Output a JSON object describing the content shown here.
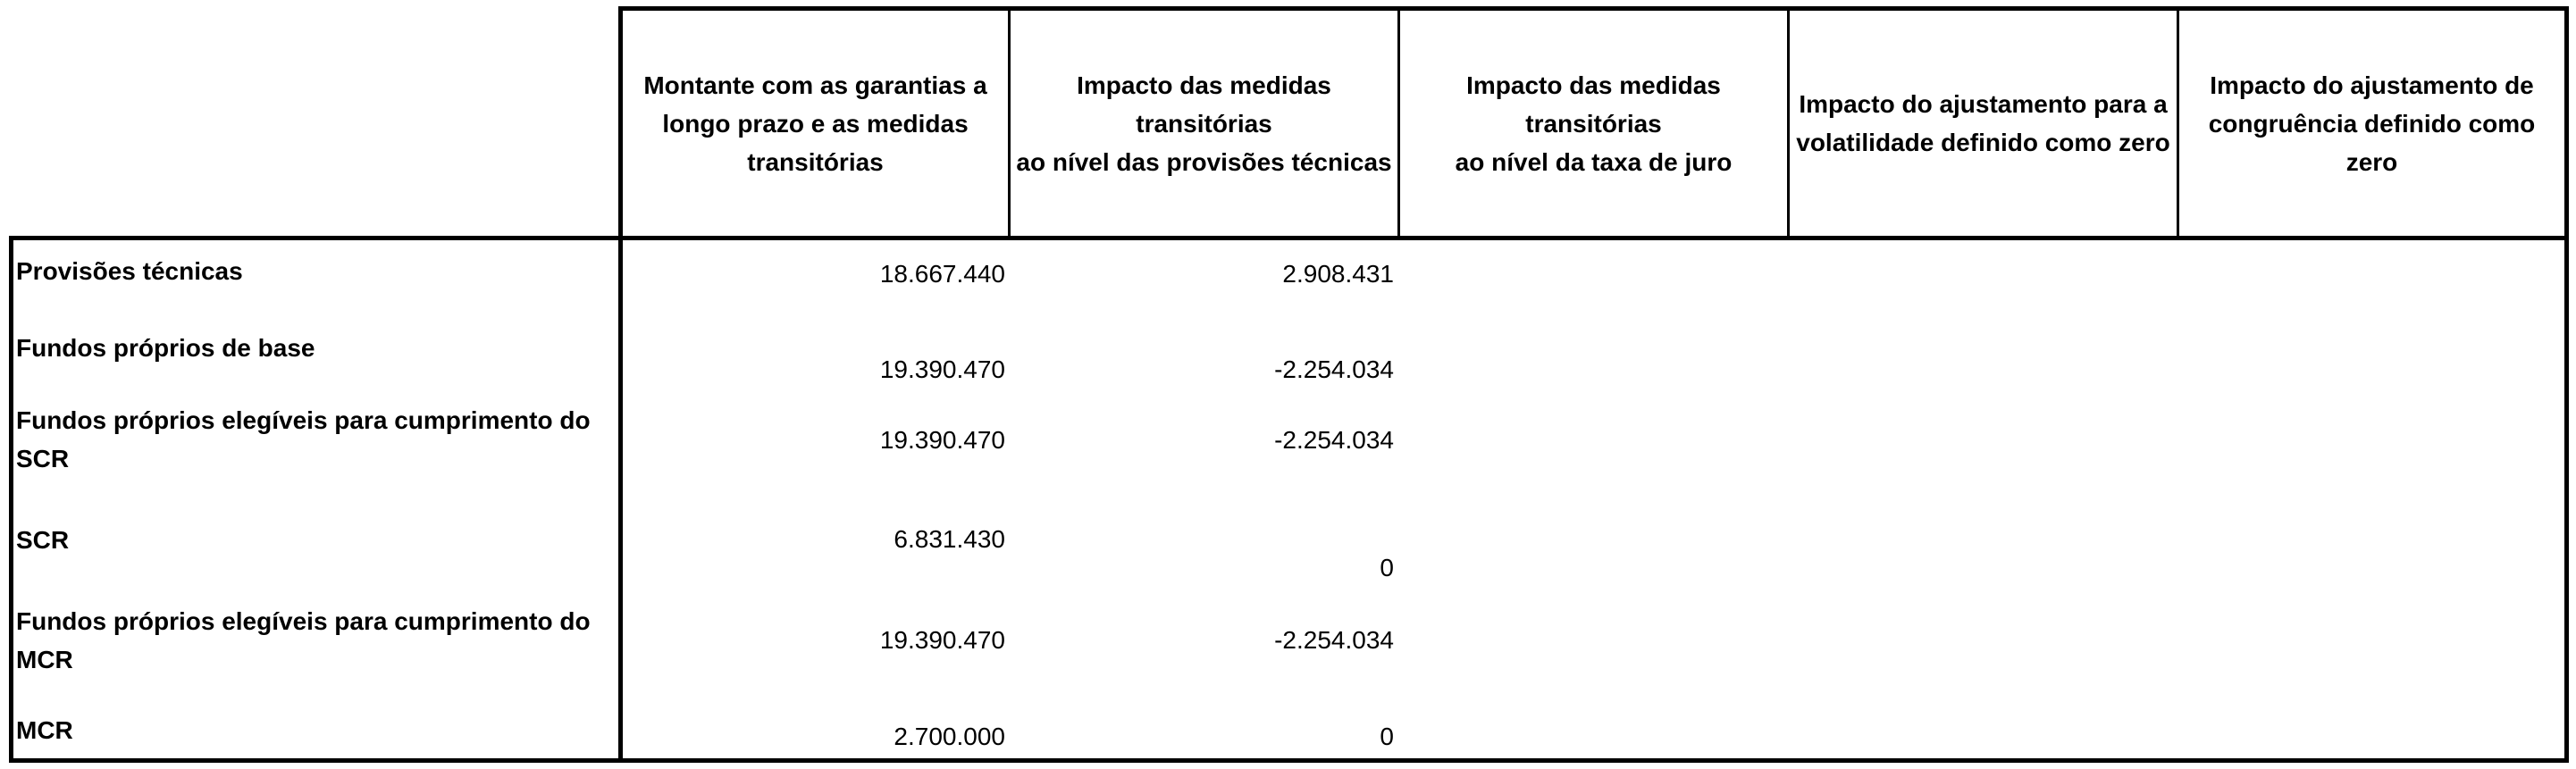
{
  "table": {
    "columns": [
      "Montante com as garantias a longo prazo e as medidas transitórias",
      "Impacto das medidas transitórias\nao nível das provisões técnicas",
      "Impacto das medidas transitórias\nao nível da taxa de juro",
      "Impacto do ajustamento para a volatilidade definido como zero",
      "Impacto do ajustamento de congruência definido como zero"
    ],
    "rows": [
      {
        "label": "Provisões técnicas",
        "values": [
          "18.667.440",
          "2.908.431",
          "",
          "",
          ""
        ]
      },
      {
        "label": "Fundos próprios de base",
        "values": [
          "19.390.470",
          "-2.254.034",
          "",
          "",
          ""
        ]
      },
      {
        "label": " Fundos próprios elegíveis para cumprimento do SCR",
        "values": [
          "19.390.470",
          "-2.254.034",
          "",
          "",
          ""
        ]
      },
      {
        "label": "SCR",
        "values": [
          "6.831.430",
          "0",
          "",
          "",
          ""
        ]
      },
      {
        "label": "Fundos próprios elegíveis para cumprimento do MCR",
        "values": [
          "19.390.470",
          "-2.254.034",
          "",
          "",
          ""
        ]
      },
      {
        "label": "MCR",
        "values": [
          "2.700.000",
          "0",
          "",
          "",
          ""
        ]
      }
    ]
  }
}
